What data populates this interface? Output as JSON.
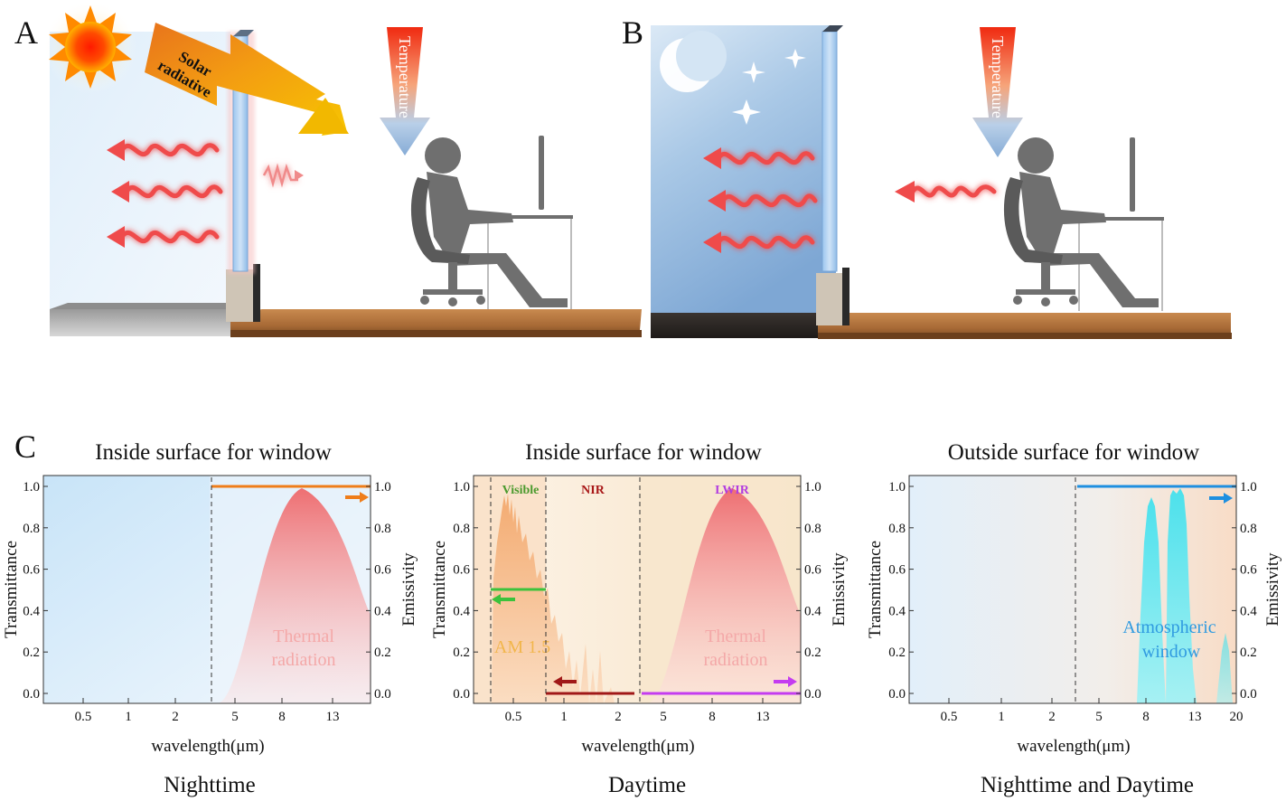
{
  "panels": {
    "A": {
      "letter": "A",
      "solar_line1": "Solar",
      "solar_line2": "radiative",
      "temperature": "Temperature"
    },
    "B": {
      "letter": "B",
      "temperature": "Temperature"
    },
    "C": {
      "letter": "C",
      "charts": [
        {
          "title": "Inside surface for window",
          "subtitle": "Nighttime",
          "xlabel": "wavelength(μm)",
          "ylabel_left": "Transmittance",
          "ylabel_right": "Emissivity",
          "yticks": [
            "0.0",
            "0.2",
            "0.4",
            "0.6",
            "0.8",
            "1.0"
          ],
          "xticks": [
            "0.5",
            "1",
            "2",
            "5",
            "8",
            "13"
          ],
          "annotation_line1": "Thermal",
          "annotation_line2": "radiation",
          "emissivity_level": 1.0
        },
        {
          "title": "Inside surface for window",
          "subtitle": "Daytime",
          "xlabel": "wavelength(μm)",
          "ylabel_left": "Transmittance",
          "ylabel_right": "Emissivity",
          "yticks": [
            "0.0",
            "0.2",
            "0.4",
            "0.6",
            "0.8",
            "1.0"
          ],
          "xticks": [
            "0.5",
            "1",
            "2",
            "5",
            "8",
            "13"
          ],
          "band_visible": "Visible",
          "band_nir": "NIR",
          "band_lwir": "LWIR",
          "annotation_am": "AM 1.5",
          "annotation_line1": "Thermal",
          "annotation_line2": "radiation",
          "visible_transmittance": 0.5,
          "nir_transmittance": 0.0,
          "lwir_emissivity": 0.0
        },
        {
          "title": "Outside surface for window",
          "subtitle": "Nighttime and Daytime",
          "xlabel": "wavelength(μm)",
          "ylabel_left": "Transmittance",
          "ylabel_right": "Emissivity",
          "yticks": [
            "0.0",
            "0.2",
            "0.4",
            "0.6",
            "0.8",
            "1.0"
          ],
          "xticks": [
            "0.5",
            "1",
            "2",
            "5",
            "8",
            "13",
            "20"
          ],
          "annotation_line1": "Atmospheric",
          "annotation_line2": "window",
          "emissivity_level": 1.0
        }
      ]
    }
  },
  "colors": {
    "orange_arrow": "#ef7d1a",
    "green_arrow": "#3cc23c",
    "darkred_arrow": "#a01818",
    "magenta_arrow": "#c43cf0",
    "blue_arrow": "#1e8fe0",
    "thermal_pink": "#f08080",
    "atm_cyan": "#50e6f0",
    "am_orange": "#f0a868"
  }
}
